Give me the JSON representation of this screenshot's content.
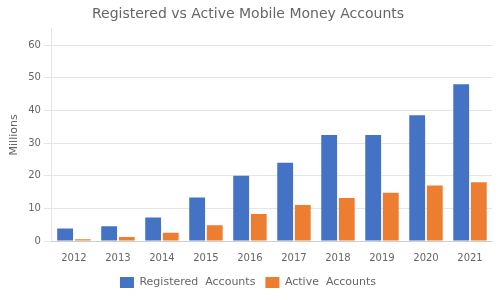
{
  "chart_data": {
    "type": "bar",
    "title": "Registered vs Active Mobile Money Accounts",
    "ylabel": "Millions",
    "categories": [
      "2012",
      "2013",
      "2014",
      "2015",
      "2016",
      "2017",
      "2018",
      "2019",
      "2020",
      "2021"
    ],
    "series": [
      {
        "name": "Registered  Accounts",
        "color": "#4472C4",
        "values": [
          3.8,
          4.5,
          7.2,
          13.3,
          20.0,
          24.0,
          32.5,
          32.5,
          38.5,
          48.0
        ]
      },
      {
        "name": "Active  Accounts",
        "color": "#ED7D31",
        "values": [
          0.5,
          1.2,
          2.5,
          4.8,
          8.3,
          11.0,
          13.2,
          14.8,
          17.0,
          18.0
        ]
      }
    ],
    "ylim": [
      0,
      65
    ],
    "yticks": [
      0,
      10,
      20,
      30,
      40,
      50,
      60
    ],
    "grid": true,
    "legend": "bottom"
  }
}
